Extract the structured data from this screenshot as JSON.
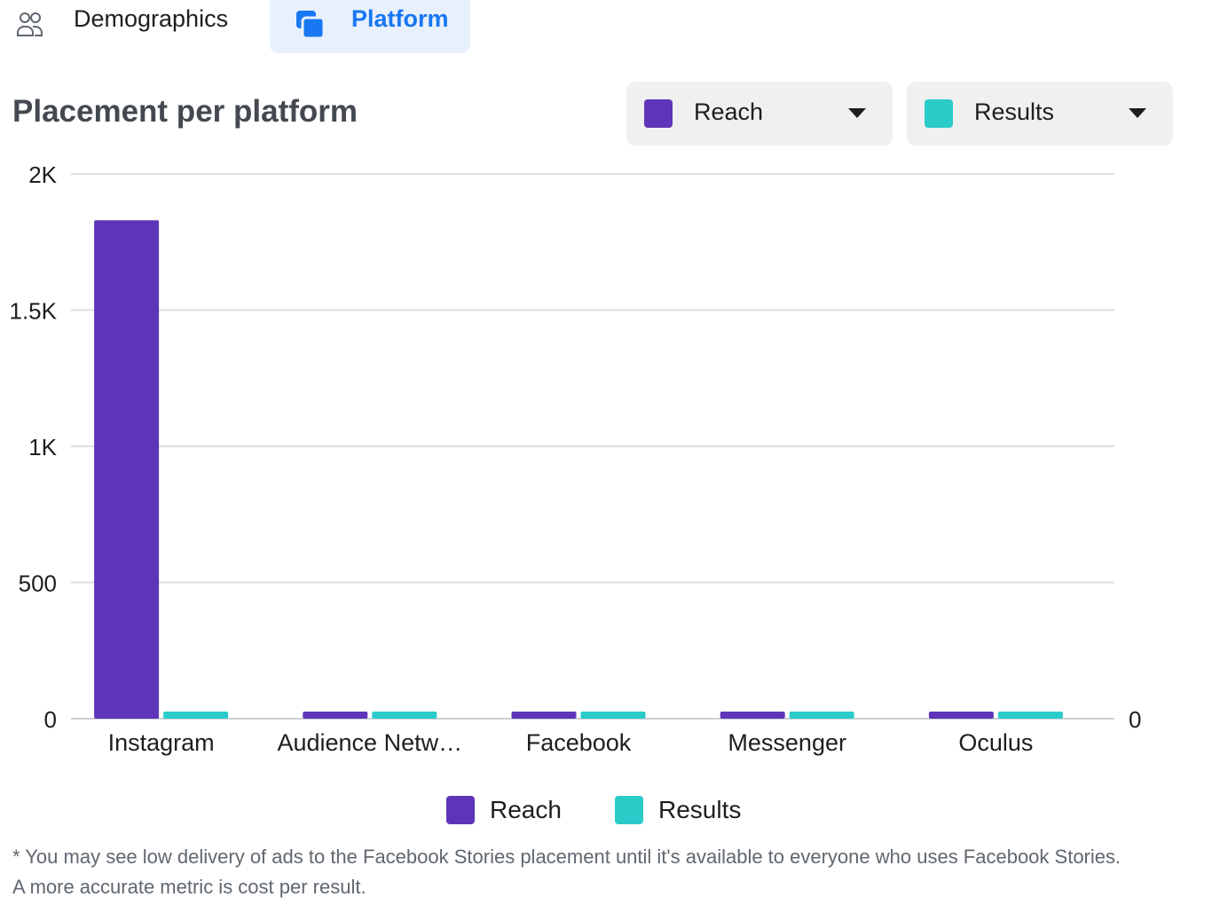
{
  "tabs": [
    {
      "label": "Demographics",
      "active": false,
      "icon": "people-icon"
    },
    {
      "label": "Platform",
      "active": true,
      "icon": "platform-icon"
    }
  ],
  "title": "Placement per platform",
  "metric_selects": [
    {
      "label": "Reach",
      "color": "#5e35b9"
    },
    {
      "label": "Results",
      "color": "#2acbc9"
    }
  ],
  "legend": [
    {
      "label": "Reach",
      "color": "#5e35b9"
    },
    {
      "label": "Results",
      "color": "#2acbc9"
    }
  ],
  "footnote": {
    "line1": "* You may see low delivery of ads to the Facebook Stories placement until it's available to everyone who uses Facebook Stories.",
    "line2": "A more accurate metric is cost per result."
  },
  "colors": {
    "accent": "#1877f2",
    "reach": "#5e35b9",
    "results": "#2acbc9",
    "grid": "#dddfe2"
  },
  "chart_data": {
    "type": "bar",
    "title": "Placement per platform",
    "categories": [
      "Instagram",
      "Audience Netw…",
      "Facebook",
      "Messenger",
      "Oculus"
    ],
    "series": [
      {
        "name": "Reach",
        "values": [
          1830,
          0,
          0,
          0,
          0
        ],
        "color": "#5e35b9",
        "axis": "left"
      },
      {
        "name": "Results",
        "values": [
          0,
          0,
          0,
          0,
          0
        ],
        "color": "#2acbc9",
        "axis": "right"
      }
    ],
    "ylim": [
      0,
      2000
    ],
    "y_ticks": [
      0,
      500,
      1000,
      1500,
      2000
    ],
    "y_tick_labels": [
      "0",
      "500",
      "1K",
      "1.5K",
      "2K"
    ],
    "y2_tick_labels": [
      "0"
    ],
    "grid": true,
    "legend_position": "bottom"
  }
}
